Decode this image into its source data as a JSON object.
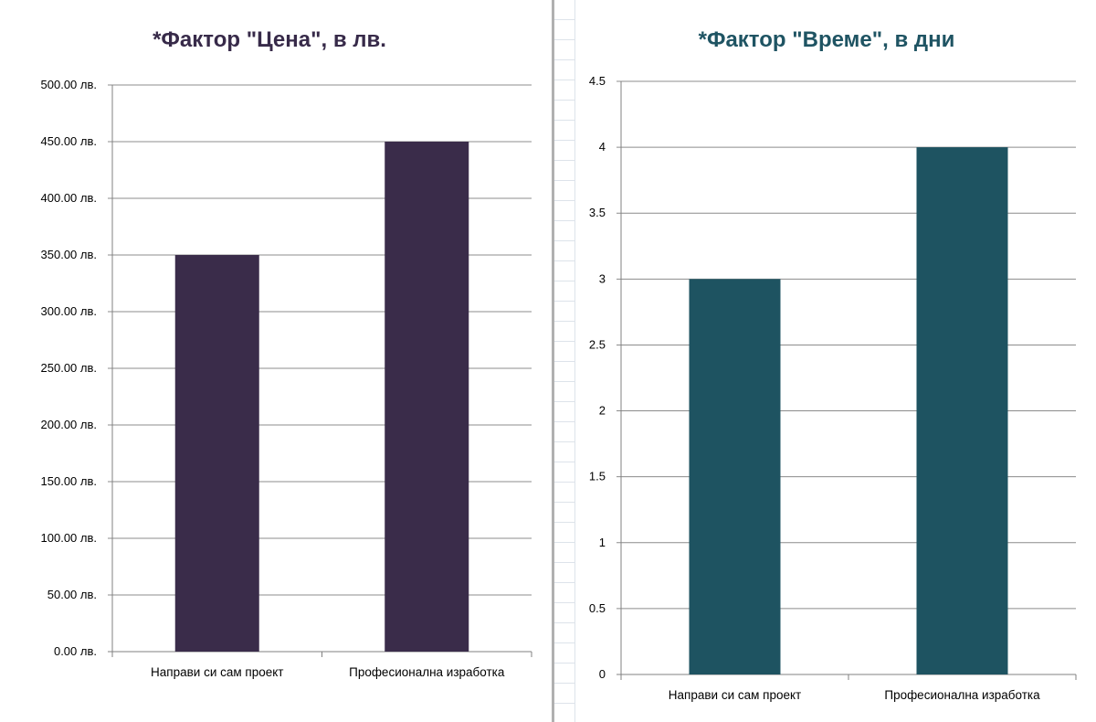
{
  "chart_data": [
    {
      "type": "bar",
      "title": "*Фактор \"Цена\", в лв.",
      "categories": [
        "Направи си сам проект",
        "Професионална изработка"
      ],
      "values": [
        350,
        450
      ],
      "ylim": [
        0,
        500
      ],
      "yticks": [
        "0.00 лв.",
        "50.00 лв.",
        "100.00 лв.",
        "150.00 лв.",
        "200.00 лв.",
        "250.00 лв.",
        "300.00 лв.",
        "350.00 лв.",
        "400.00 лв.",
        "450.00 лв.",
        "500.00 лв."
      ],
      "ytick_values": [
        0,
        50,
        100,
        150,
        200,
        250,
        300,
        350,
        400,
        450,
        500
      ],
      "grid": true,
      "legend": "none",
      "bar_color": "#3a2c4a",
      "title_color": "#372a49"
    },
    {
      "type": "bar",
      "title": "*Фактор \"Време\", в дни",
      "categories": [
        "Направи си сам проект",
        "Професионална изработка"
      ],
      "values": [
        3,
        4
      ],
      "ylim": [
        0,
        4.5
      ],
      "yticks": [
        "0",
        "0.5",
        "1",
        "1.5",
        "2",
        "2.5",
        "3",
        "3.5",
        "4",
        "4.5"
      ],
      "ytick_values": [
        0,
        0.5,
        1,
        1.5,
        2,
        2.5,
        3,
        3.5,
        4,
        4.5
      ],
      "grid": true,
      "legend": "none",
      "bar_color": "#1e5361",
      "title_color": "#1f5463"
    }
  ]
}
